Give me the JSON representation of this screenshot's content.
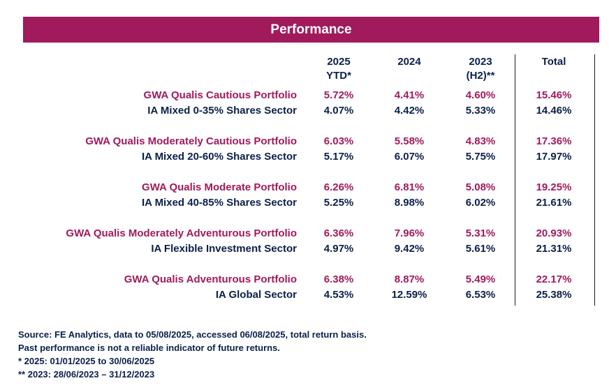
{
  "chart_data": {
    "type": "table",
    "title": "Performance",
    "columns": [
      {
        "line1": "2025",
        "line2": "YTD*"
      },
      {
        "line1": "2024",
        "line2": ""
      },
      {
        "line1": "2023",
        "line2": "(H2)**"
      },
      {
        "line1": "Total",
        "line2": ""
      }
    ],
    "groups": [
      {
        "fund": {
          "name": "GWA Qualis Cautious Portfolio",
          "values": [
            "5.72%",
            "4.41%",
            "4.60%",
            "15.46%"
          ]
        },
        "sector": {
          "name": "IA Mixed 0-35% Shares Sector",
          "values": [
            "4.07%",
            "4.42%",
            "5.33%",
            "14.46%"
          ]
        }
      },
      {
        "fund": {
          "name": "GWA Qualis Moderately Cautious Portfolio",
          "values": [
            "6.03%",
            "5.58%",
            "4.83%",
            "17.36%"
          ]
        },
        "sector": {
          "name": "IA Mixed 20-60% Shares Sector",
          "values": [
            "5.17%",
            "6.07%",
            "5.75%",
            "17.97%"
          ]
        }
      },
      {
        "fund": {
          "name": "GWA Qualis Moderate Portfolio",
          "values": [
            "6.26%",
            "6.81%",
            "5.08%",
            "19.25%"
          ]
        },
        "sector": {
          "name": "IA Mixed 40-85% Shares Sector",
          "values": [
            "5.25%",
            "8.98%",
            "6.02%",
            "21.61%"
          ]
        }
      },
      {
        "fund": {
          "name": "GWA Qualis Moderately Adventurous Portfolio",
          "values": [
            "6.36%",
            "7.96%",
            "5.31%",
            "20.93%"
          ]
        },
        "sector": {
          "name": "IA Flexible Investment Sector",
          "values": [
            "4.97%",
            "9.42%",
            "5.61%",
            "21.31%"
          ]
        }
      },
      {
        "fund": {
          "name": "GWA Qualis Adventurous Portfolio",
          "values": [
            "6.38%",
            "8.87%",
            "5.49%",
            "22.17%"
          ]
        },
        "sector": {
          "name": "IA Global Sector",
          "values": [
            "4.53%",
            "12.59%",
            "6.53%",
            "25.38%"
          ]
        }
      }
    ],
    "notes": [
      "Source: FE Analytics, data to 05/08/2025, accessed 06/08/2025, total return basis.",
      "Past performance is not a reliable indicator of future returns.",
      "*  2025: 01/01/2025 to 30/06/2025",
      "** 2023: 28/06/2023 – 31/12/2023"
    ]
  },
  "colors": {
    "banner": "#a01a5c",
    "fund_text": "#a01a5c",
    "sector_text": "#0b1f4a"
  }
}
